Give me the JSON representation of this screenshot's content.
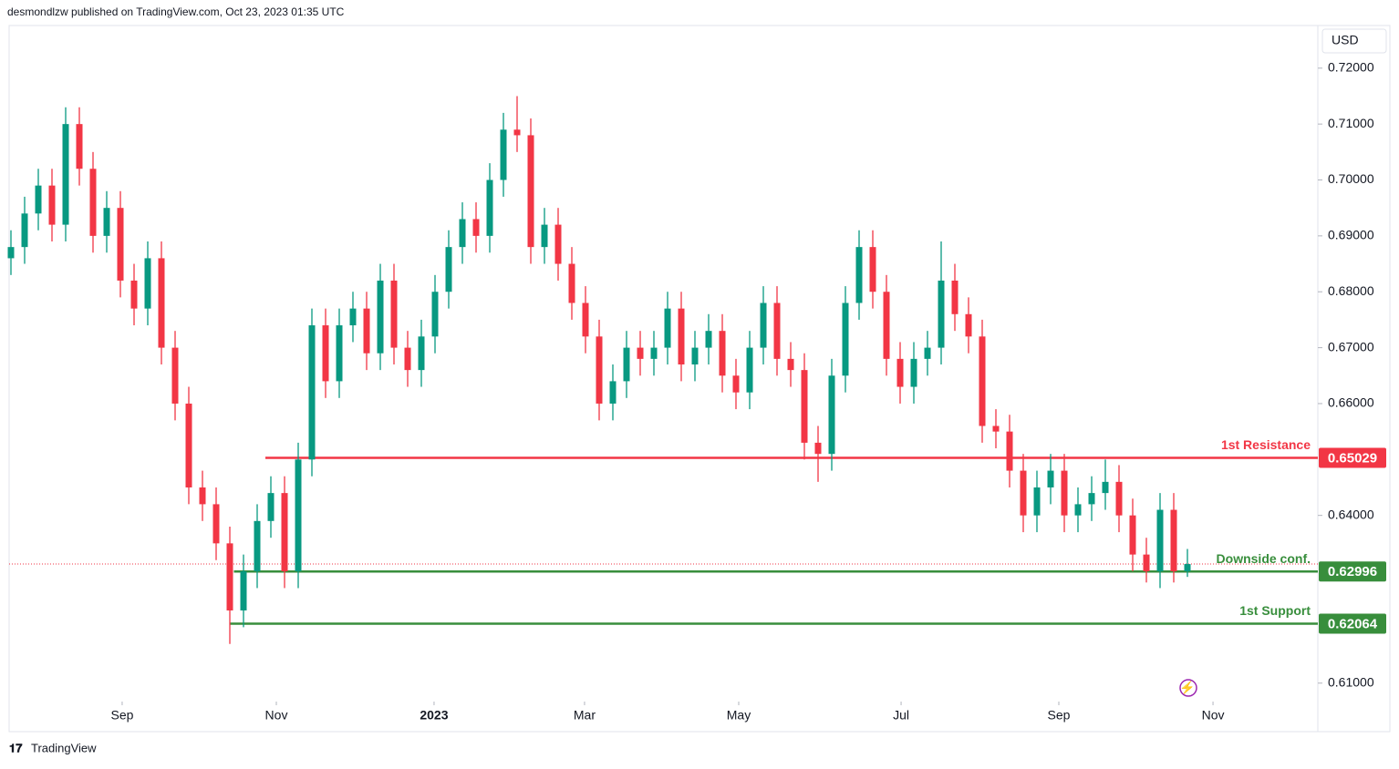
{
  "header": "desmondlzw published on TradingView.com, Oct 23, 2023 01:35 UTC",
  "footer": "TradingView",
  "chart_data": {
    "type": "candlestick",
    "currency": "USD",
    "up_color": "#089981",
    "down_color": "#f23645",
    "categories": [
      null,
      null,
      null,
      null,
      null,
      null,
      null,
      null,
      null,
      null,
      null,
      null,
      null,
      null,
      null,
      null,
      null,
      null,
      null,
      null,
      null,
      null,
      null,
      null,
      null,
      null,
      null,
      null,
      null,
      null,
      null,
      null,
      null,
      null,
      null,
      null,
      null,
      null,
      null,
      null,
      null,
      null,
      null,
      null,
      null,
      null,
      null,
      null,
      null,
      null,
      null,
      null,
      null,
      null,
      null,
      null,
      null,
      null,
      null,
      null,
      null,
      null,
      null,
      null,
      null,
      null,
      null,
      null,
      null,
      null,
      null,
      null,
      null,
      null,
      null,
      null,
      null,
      null,
      null,
      null,
      null,
      null,
      null,
      null,
      null,
      null,
      null
    ],
    "open": [
      0.686,
      0.688,
      0.694,
      0.699,
      0.692,
      0.71,
      0.702,
      0.69,
      0.695,
      0.682,
      0.677,
      0.686,
      0.67,
      0.66,
      0.645,
      0.642,
      0.635,
      0.623,
      0.63,
      0.639,
      0.644,
      0.63,
      0.65,
      0.674,
      0.664,
      0.674,
      0.677,
      0.669,
      0.682,
      0.67,
      0.666,
      0.672,
      0.68,
      0.688,
      0.693,
      0.69,
      0.7,
      0.709,
      0.708,
      0.688,
      0.692,
      0.685,
      0.678,
      0.672,
      0.66,
      0.664,
      0.67,
      0.668,
      0.67,
      0.677,
      0.667,
      0.67,
      0.673,
      0.665,
      0.662,
      0.67,
      0.678,
      0.668,
      0.666,
      0.653,
      0.651,
      0.665,
      0.678,
      0.688,
      0.68,
      0.668,
      0.663,
      0.668,
      0.67,
      0.682,
      0.676,
      0.672,
      0.656,
      0.655,
      0.648,
      0.64,
      0.645,
      0.648,
      0.64,
      0.642,
      0.644,
      0.646,
      0.64,
      0.633,
      0.63,
      0.641,
      0.63
    ],
    "high": [
      0.691,
      0.697,
      0.702,
      0.702,
      0.713,
      0.713,
      0.705,
      0.698,
      0.698,
      0.685,
      0.689,
      0.689,
      0.673,
      0.663,
      0.648,
      0.645,
      0.638,
      0.633,
      0.642,
      0.647,
      0.647,
      0.653,
      0.677,
      0.677,
      0.677,
      0.68,
      0.68,
      0.685,
      0.685,
      0.673,
      0.675,
      0.683,
      0.691,
      0.696,
      0.696,
      0.703,
      0.712,
      0.715,
      0.711,
      0.695,
      0.695,
      0.688,
      0.681,
      0.675,
      0.667,
      0.673,
      0.673,
      0.673,
      0.68,
      0.68,
      0.673,
      0.676,
      0.676,
      0.668,
      0.673,
      0.681,
      0.681,
      0.671,
      0.669,
      0.656,
      0.668,
      0.681,
      0.691,
      0.691,
      0.683,
      0.671,
      0.671,
      0.673,
      0.689,
      0.685,
      0.679,
      0.675,
      0.659,
      0.658,
      0.651,
      0.648,
      0.651,
      0.651,
      0.645,
      0.647,
      0.65,
      0.649,
      0.643,
      0.636,
      0.644,
      0.644,
      0.634
    ],
    "low": [
      0.683,
      0.685,
      0.691,
      0.689,
      0.689,
      0.699,
      0.687,
      0.687,
      0.679,
      0.674,
      0.674,
      0.667,
      0.657,
      0.642,
      0.639,
      0.632,
      0.617,
      0.62,
      0.627,
      0.636,
      0.627,
      0.627,
      0.647,
      0.661,
      0.661,
      0.671,
      0.666,
      0.666,
      0.667,
      0.663,
      0.663,
      0.669,
      0.677,
      0.685,
      0.687,
      0.687,
      0.697,
      0.705,
      0.685,
      0.685,
      0.682,
      0.675,
      0.669,
      0.657,
      0.657,
      0.661,
      0.665,
      0.665,
      0.667,
      0.664,
      0.664,
      0.667,
      0.662,
      0.659,
      0.659,
      0.667,
      0.665,
      0.663,
      0.65,
      0.646,
      0.648,
      0.662,
      0.675,
      0.677,
      0.665,
      0.66,
      0.66,
      0.665,
      0.667,
      0.673,
      0.669,
      0.653,
      0.652,
      0.645,
      0.637,
      0.637,
      0.642,
      0.637,
      0.637,
      0.639,
      0.641,
      0.637,
      0.63,
      0.628,
      0.627,
      0.628,
      0.629
    ],
    "close": [
      0.688,
      0.694,
      0.699,
      0.692,
      0.71,
      0.702,
      0.69,
      0.695,
      0.682,
      0.677,
      0.686,
      0.67,
      0.66,
      0.645,
      0.642,
      0.635,
      0.623,
      0.63,
      0.639,
      0.644,
      0.63,
      0.65,
      0.674,
      0.664,
      0.674,
      0.677,
      0.669,
      0.682,
      0.67,
      0.666,
      0.672,
      0.68,
      0.688,
      0.693,
      0.69,
      0.7,
      0.709,
      0.708,
      0.688,
      0.692,
      0.685,
      0.678,
      0.672,
      0.66,
      0.664,
      0.67,
      0.668,
      0.67,
      0.677,
      0.667,
      0.67,
      0.673,
      0.665,
      0.662,
      0.67,
      0.678,
      0.668,
      0.666,
      0.653,
      0.651,
      0.665,
      0.678,
      0.688,
      0.68,
      0.668,
      0.663,
      0.668,
      0.67,
      0.682,
      0.676,
      0.672,
      0.656,
      0.655,
      0.648,
      0.64,
      0.645,
      0.648,
      0.64,
      0.642,
      0.644,
      0.646,
      0.64,
      0.633,
      0.63,
      0.641,
      0.63,
      0.6313
    ],
    "last_price": 0.6313,
    "ylim": [
      0.6067,
      0.7273
    ],
    "yticks": [
      {
        "value": 0.61,
        "label": "0.61000"
      },
      {
        "value": 0.64,
        "label": "0.64000"
      },
      {
        "value": 0.66,
        "label": "0.66000"
      },
      {
        "value": 0.67,
        "label": "0.67000"
      },
      {
        "value": 0.68,
        "label": "0.68000"
      },
      {
        "value": 0.69,
        "label": "0.69000"
      },
      {
        "value": 0.7,
        "label": "0.70000"
      },
      {
        "value": 0.71,
        "label": "0.71000"
      },
      {
        "value": 0.72,
        "label": "0.72000"
      }
    ],
    "xticks": [
      {
        "value": 8.13,
        "label": "Sep"
      },
      {
        "value": 19.4,
        "label": "Nov"
      },
      {
        "value": 30.93,
        "label": "2023"
      },
      {
        "value": 41.93,
        "label": "Mar"
      },
      {
        "value": 53.2,
        "label": "May"
      },
      {
        "value": 65.07,
        "label": "Jul"
      },
      {
        "value": 76.6,
        "label": "Sep"
      },
      {
        "value": 87.87,
        "label": "Nov"
      }
    ],
    "levels": [
      {
        "name": "1st Resistance",
        "value": 0.65029,
        "color": "#f23645"
      },
      {
        "name": "Downside conf.",
        "value": 0.62996,
        "color": "#388e3c"
      },
      {
        "name": "1st Support",
        "value": 0.62064,
        "color": "#388e3c"
      }
    ]
  }
}
